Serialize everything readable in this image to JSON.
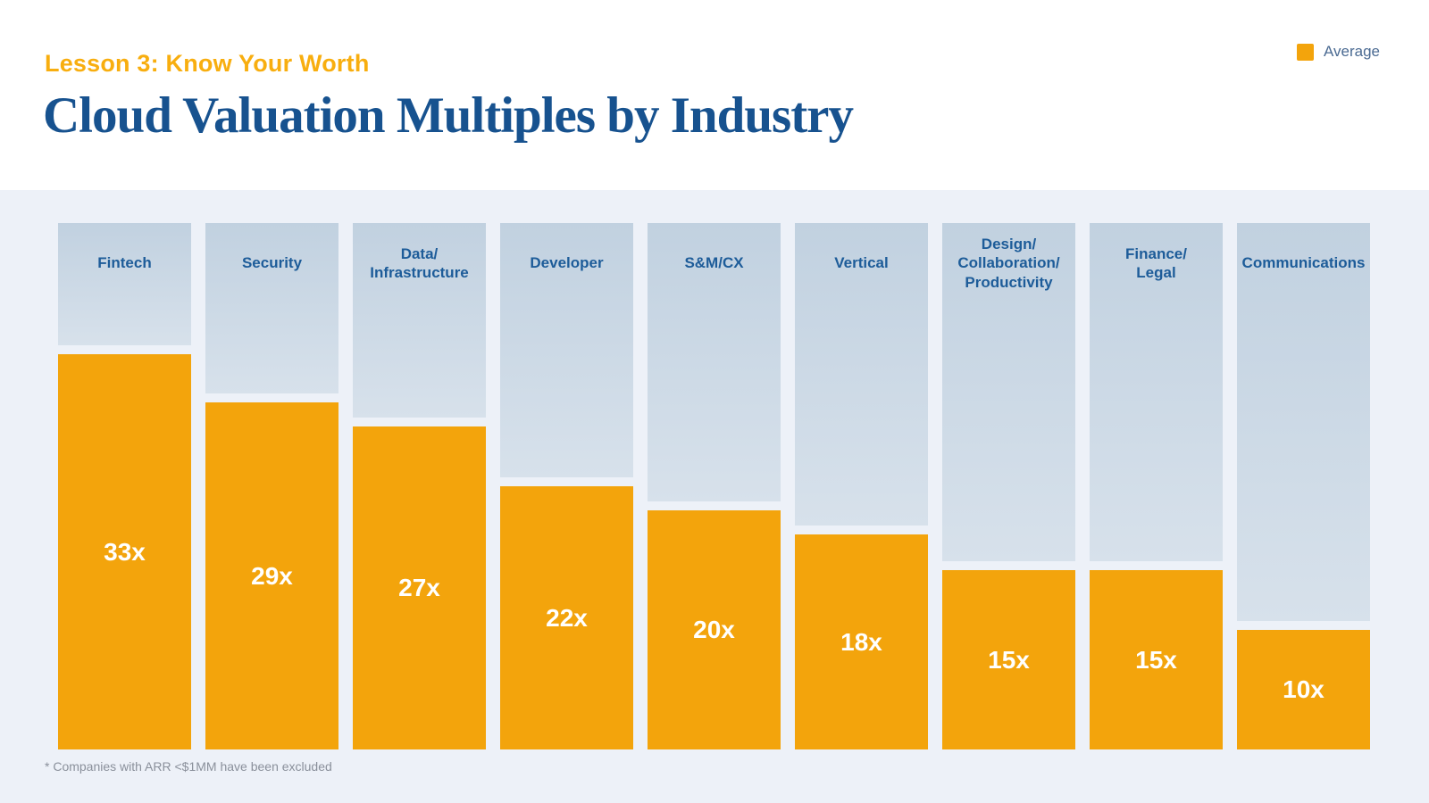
{
  "header": {
    "eyebrow": "Lesson 3: Know Your Worth",
    "title": "Cloud Valuation Multiples by Industry"
  },
  "legend": {
    "label": "Average",
    "color": "#F3A40C"
  },
  "footnote": "* Companies with ARR <$1MM have been excluded",
  "chart_data": {
    "type": "bar",
    "title": "Cloud Valuation Multiples by Industry",
    "categories": [
      "Fintech",
      "Security",
      "Data/\nInfrastructure",
      "Developer",
      "S&M/CX",
      "Vertical",
      "Design/\nCollaboration/\nProductivity",
      "Finance/\nLegal",
      "Communications"
    ],
    "values": [
      33,
      29,
      27,
      22,
      20,
      18,
      15,
      15,
      10
    ],
    "value_labels": [
      "33x",
      "29x",
      "27x",
      "22x",
      "20x",
      "18x",
      "15x",
      "15x",
      "10x"
    ],
    "xlabel": "",
    "ylabel": "",
    "ylim": [
      0,
      44
    ],
    "grid": false,
    "legend": [
      "Average"
    ],
    "legend_position": "top-right",
    "colors": {
      "bar": "#F3A40C",
      "track_top": "#C1D1E0",
      "track_bottom": "#D7E1EB",
      "value_text": "#FFFFFF",
      "category_text": "#1D5C99"
    }
  }
}
